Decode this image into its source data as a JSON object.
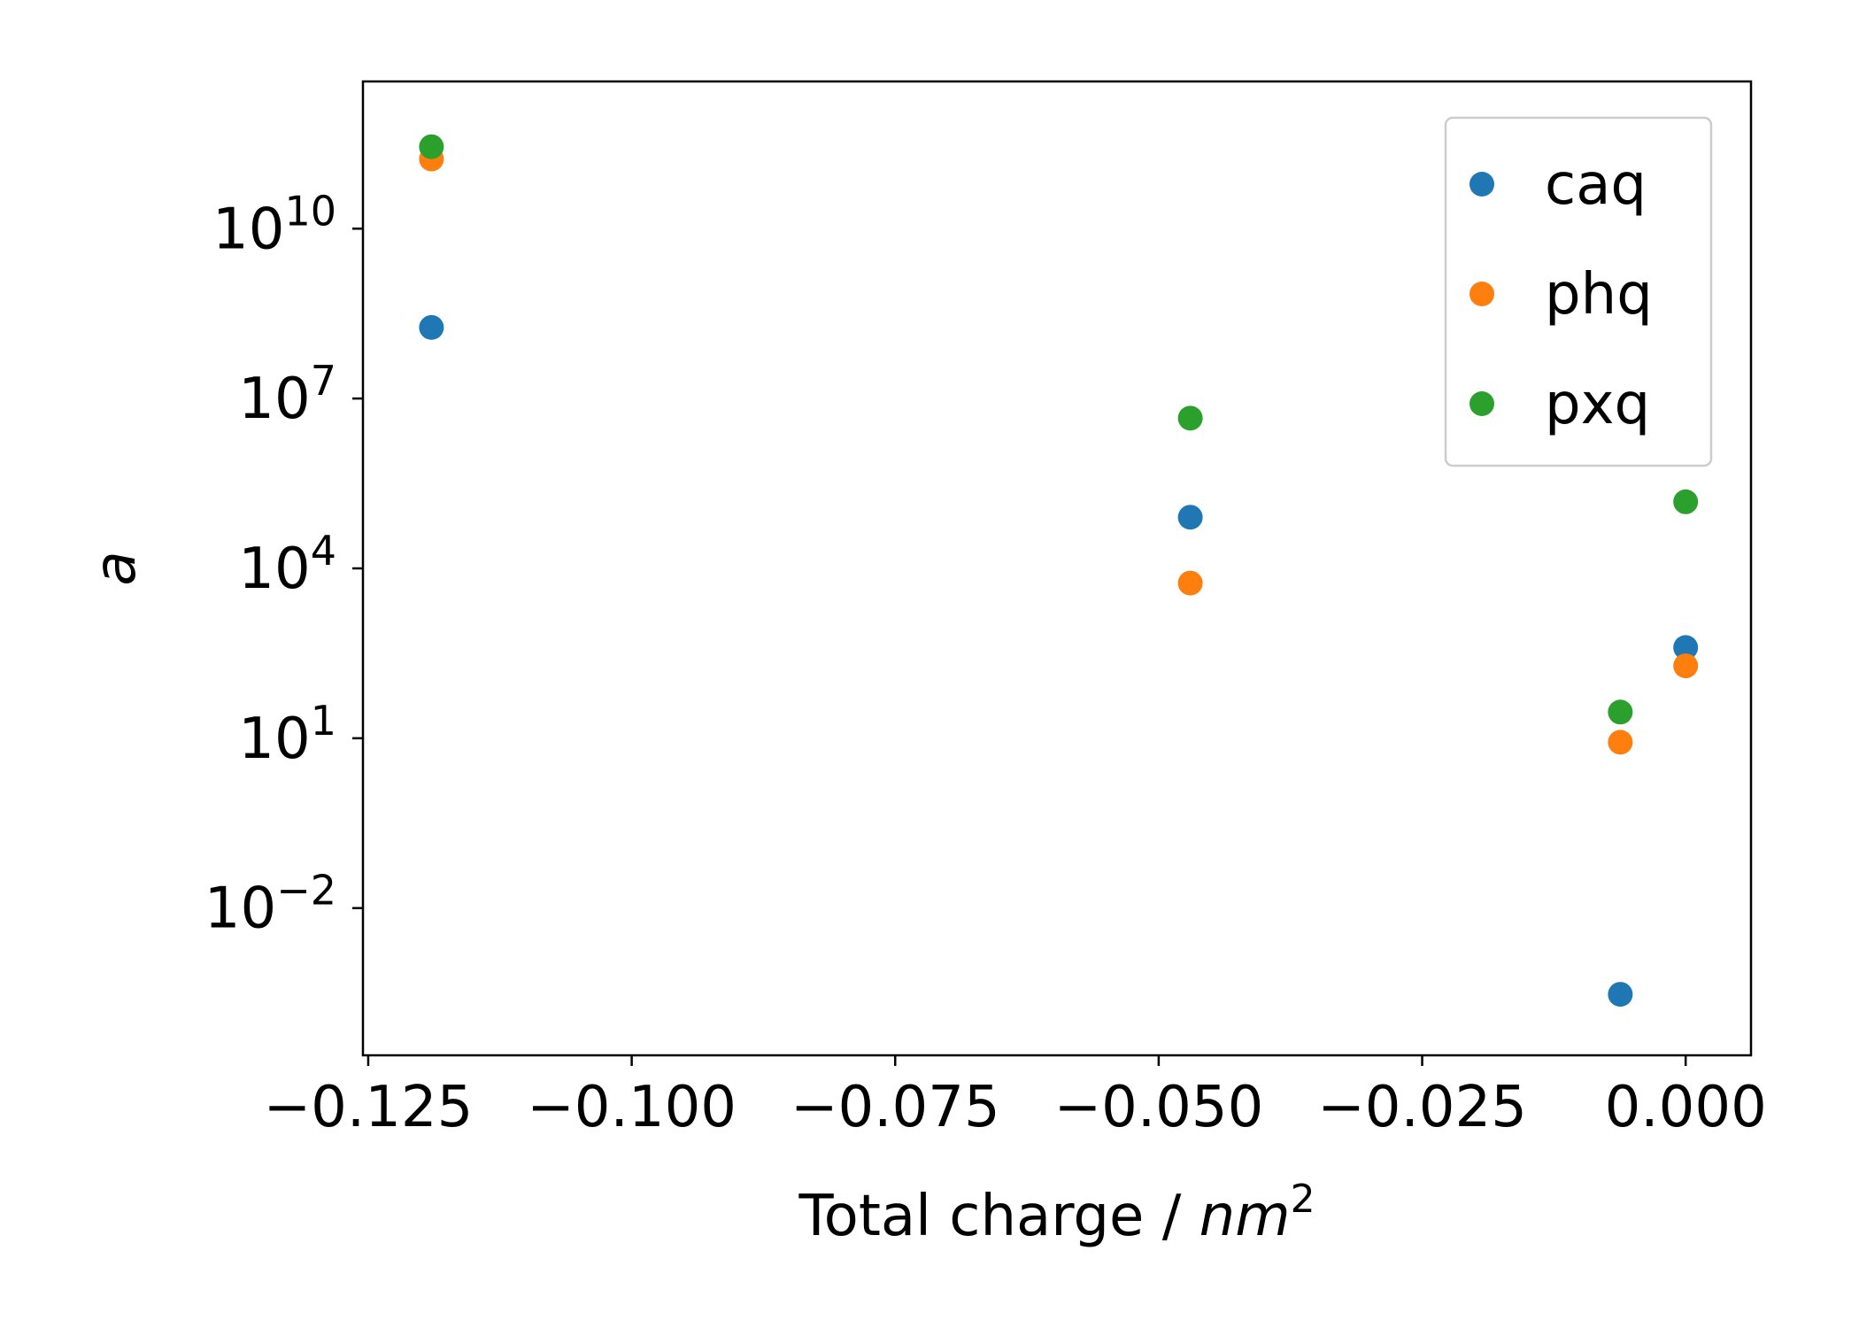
{
  "chart_data": {
    "type": "scatter",
    "title": "",
    "xlabel": "Total charge / ",
    "xlabel_unit": "nm",
    "xlabel_unit_exponent": "2",
    "ylabel": "a",
    "yscale": "log",
    "xlim": [
      -0.1255,
      0.0062
    ],
    "ylim_log10": [
      -4.6,
      12.6
    ],
    "xticks": [
      -0.125,
      -0.1,
      -0.075,
      -0.05,
      -0.025,
      0.0
    ],
    "xtick_labels": [
      "−0.125",
      "−0.100",
      "−0.075",
      "−0.050",
      "−0.025",
      "0.000"
    ],
    "yticks_log10": [
      -2,
      1,
      4,
      7,
      10
    ],
    "ytick_bases": [
      "10",
      "10",
      "10",
      "10",
      "10"
    ],
    "ytick_exponents": [
      "−2",
      "1",
      "4",
      "7",
      "10"
    ],
    "grid": false,
    "legend_position": "top-right",
    "series": [
      {
        "name": "caq",
        "color": "#1f77b4",
        "points": [
          {
            "x": -0.119,
            "y": 180000000.0
          },
          {
            "x": -0.047,
            "y": 80000.0
          },
          {
            "x": -0.0062,
            "y": 0.0003
          },
          {
            "x": 0.0,
            "y": 400
          }
        ]
      },
      {
        "name": "phq",
        "color": "#ff7f0e",
        "points": [
          {
            "x": -0.119,
            "y": 170000000000.0
          },
          {
            "x": -0.047,
            "y": 5500
          },
          {
            "x": -0.0062,
            "y": 8.5
          },
          {
            "x": 0.0,
            "y": 190
          }
        ]
      },
      {
        "name": "pxq",
        "color": "#2ca02c",
        "points": [
          {
            "x": -0.119,
            "y": 280000000000.0
          },
          {
            "x": -0.047,
            "y": 4500000.0
          },
          {
            "x": -0.0062,
            "y": 29
          },
          {
            "x": 0.0,
            "y": 150000.0
          }
        ]
      }
    ]
  }
}
